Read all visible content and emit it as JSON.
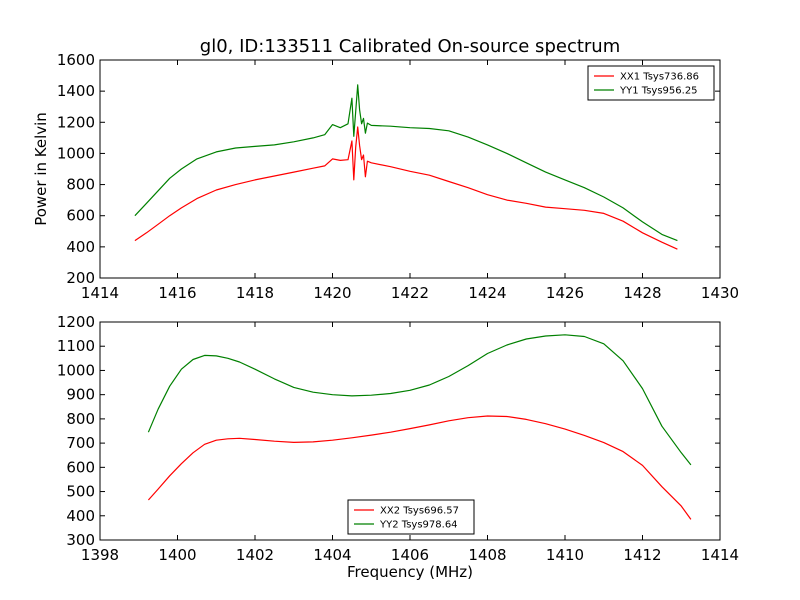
{
  "chart_data": [
    {
      "type": "line",
      "title": "gl0, ID:133511 Calibrated On-source spectrum",
      "xlabel": "",
      "ylabel": "Power in Kelvin",
      "xlim": [
        1414,
        1430
      ],
      "ylim": [
        200,
        1600
      ],
      "xticks": [
        "1414",
        "1416",
        "1418",
        "1420",
        "1422",
        "1424",
        "1426",
        "1428",
        "1430"
      ],
      "yticks": [
        "200",
        "400",
        "600",
        "800",
        "1000",
        "1200",
        "1400",
        "1600"
      ],
      "legend_position": "top-right",
      "series": [
        {
          "name": "XX1 Tsys736.86",
          "color": "#ff0000",
          "x": [
            1414.9,
            1415.2,
            1415.5,
            1415.8,
            1416.1,
            1416.5,
            1417.0,
            1417.5,
            1418.0,
            1418.5,
            1419.0,
            1419.5,
            1419.8,
            1420.0,
            1420.2,
            1420.4,
            1420.5,
            1420.55,
            1420.6,
            1420.65,
            1420.7,
            1420.75,
            1420.8,
            1420.85,
            1420.9,
            1421.0,
            1421.5,
            1422.0,
            1422.5,
            1423.0,
            1423.5,
            1424.0,
            1424.5,
            1425.0,
            1425.5,
            1426.0,
            1426.5,
            1427.0,
            1427.5,
            1428.0,
            1428.5,
            1428.9
          ],
          "y": [
            440,
            490,
            545,
            600,
            650,
            710,
            765,
            800,
            830,
            855,
            880,
            905,
            920,
            965,
            955,
            960,
            1080,
            830,
            1040,
            1170,
            1050,
            960,
            990,
            850,
            950,
            940,
            915,
            885,
            860,
            820,
            780,
            735,
            700,
            680,
            655,
            645,
            635,
            615,
            565,
            490,
            430,
            385
          ]
        },
        {
          "name": "YY1 Tsys956.25",
          "color": "#008000",
          "x": [
            1414.9,
            1415.2,
            1415.5,
            1415.8,
            1416.1,
            1416.5,
            1417.0,
            1417.5,
            1418.0,
            1418.5,
            1419.0,
            1419.5,
            1419.8,
            1420.0,
            1420.2,
            1420.4,
            1420.5,
            1420.55,
            1420.6,
            1420.65,
            1420.7,
            1420.75,
            1420.8,
            1420.85,
            1420.9,
            1421.0,
            1421.5,
            1422.0,
            1422.5,
            1423.0,
            1423.5,
            1424.0,
            1424.5,
            1425.0,
            1425.5,
            1426.0,
            1426.5,
            1427.0,
            1427.5,
            1428.0,
            1428.5,
            1428.9
          ],
          "y": [
            600,
            680,
            760,
            840,
            900,
            965,
            1010,
            1035,
            1045,
            1055,
            1075,
            1100,
            1120,
            1185,
            1165,
            1190,
            1355,
            1110,
            1270,
            1440,
            1280,
            1190,
            1225,
            1130,
            1195,
            1180,
            1175,
            1165,
            1160,
            1145,
            1105,
            1055,
            1000,
            940,
            880,
            830,
            780,
            720,
            650,
            560,
            480,
            440
          ]
        }
      ]
    },
    {
      "type": "line",
      "title": "",
      "xlabel": "Frequency (MHz)",
      "ylabel": "",
      "xlim": [
        1398,
        1414
      ],
      "ylim": [
        300,
        1200
      ],
      "xticks": [
        "1398",
        "1400",
        "1402",
        "1404",
        "1406",
        "1408",
        "1410",
        "1412",
        "1414"
      ],
      "yticks": [
        "300",
        "400",
        "500",
        "600",
        "700",
        "800",
        "900",
        "1000",
        "1100",
        "1200"
      ],
      "legend_position": "bottom-center",
      "series": [
        {
          "name": "XX2 Tsys696.57",
          "color": "#ff0000",
          "x": [
            1399.25,
            1399.5,
            1399.8,
            1400.1,
            1400.4,
            1400.7,
            1401.0,
            1401.3,
            1401.6,
            1402.0,
            1402.5,
            1403.0,
            1403.5,
            1404.0,
            1404.5,
            1405.0,
            1405.5,
            1406.0,
            1406.5,
            1407.0,
            1407.5,
            1408.0,
            1408.5,
            1409.0,
            1409.5,
            1410.0,
            1410.5,
            1411.0,
            1411.5,
            1412.0,
            1412.5,
            1413.0,
            1413.25
          ],
          "y": [
            465,
            510,
            565,
            615,
            660,
            695,
            712,
            718,
            720,
            715,
            708,
            703,
            705,
            712,
            722,
            733,
            745,
            760,
            775,
            792,
            805,
            812,
            810,
            798,
            780,
            758,
            732,
            702,
            665,
            608,
            520,
            440,
            385
          ]
        },
        {
          "name": "YY2 Tsys978.64",
          "color": "#008000",
          "x": [
            1399.25,
            1399.5,
            1399.8,
            1400.1,
            1400.4,
            1400.7,
            1401.0,
            1401.3,
            1401.6,
            1402.0,
            1402.5,
            1403.0,
            1403.5,
            1404.0,
            1404.5,
            1405.0,
            1405.5,
            1406.0,
            1406.5,
            1407.0,
            1407.5,
            1408.0,
            1408.5,
            1409.0,
            1409.5,
            1410.0,
            1410.5,
            1411.0,
            1411.5,
            1412.0,
            1412.5,
            1413.0,
            1413.25
          ],
          "y": [
            745,
            840,
            935,
            1005,
            1045,
            1062,
            1060,
            1050,
            1035,
            1005,
            965,
            930,
            910,
            900,
            895,
            898,
            905,
            918,
            940,
            975,
            1020,
            1070,
            1105,
            1130,
            1142,
            1147,
            1140,
            1110,
            1040,
            925,
            770,
            660,
            610
          ]
        }
      ]
    }
  ]
}
